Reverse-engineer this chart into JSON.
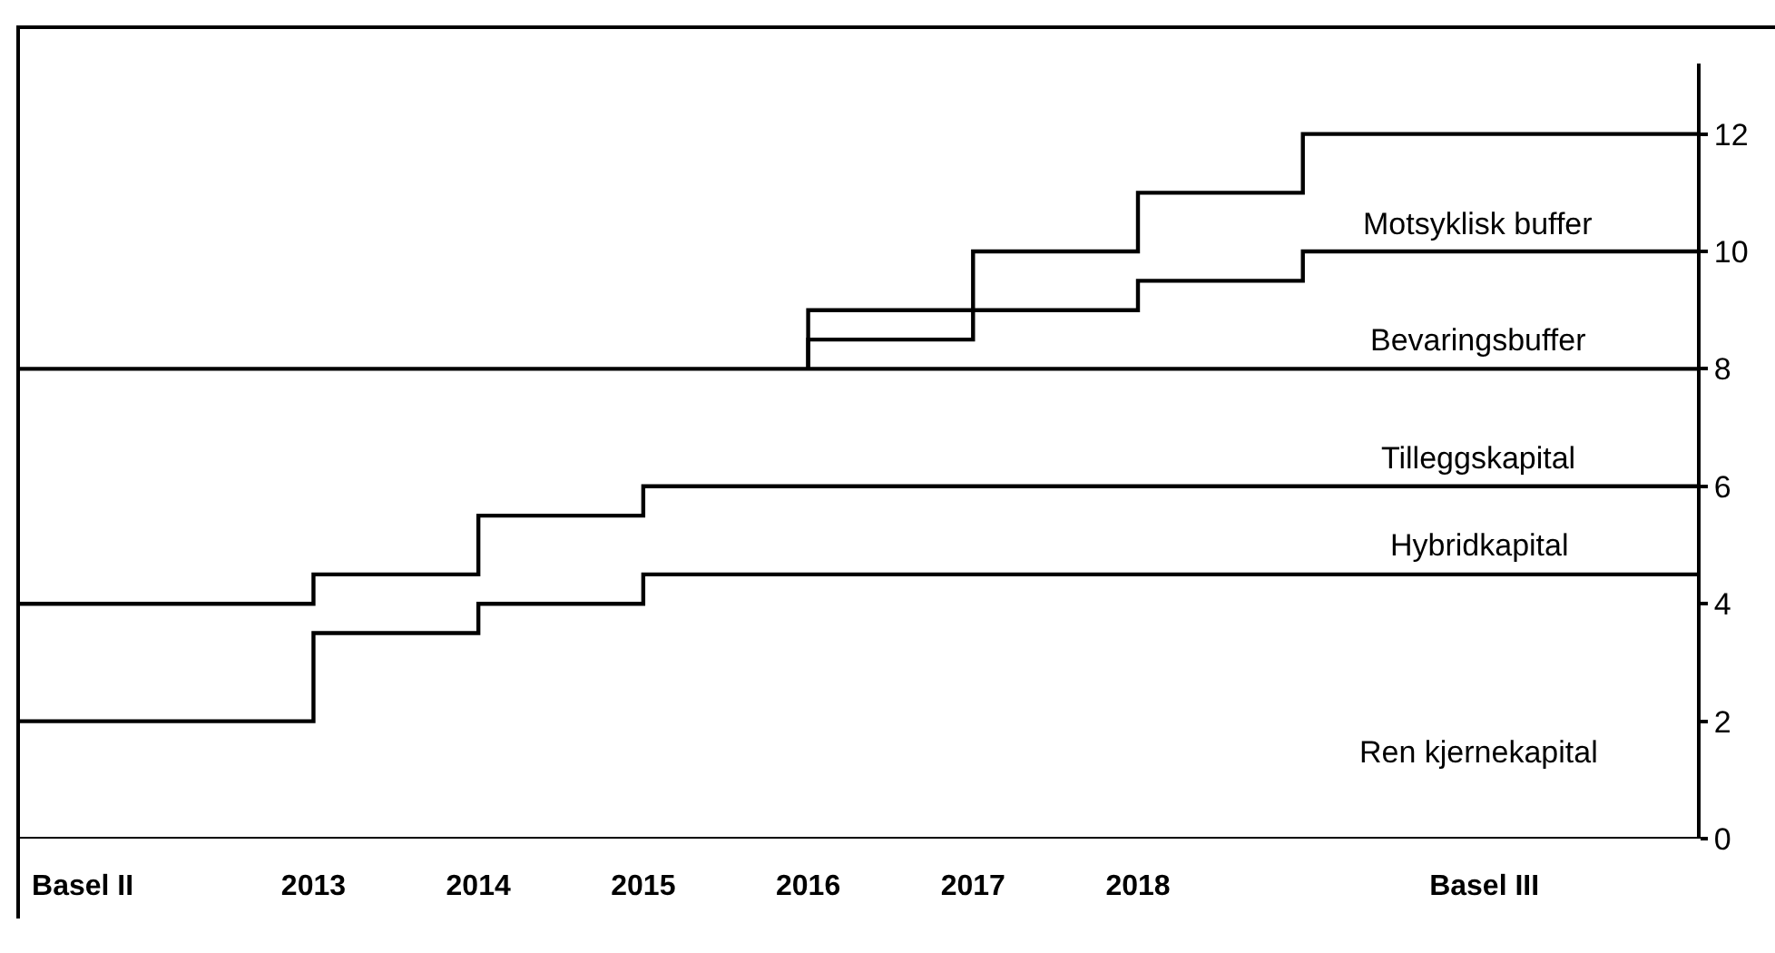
{
  "chart_data": {
    "type": "step",
    "xlim": [
      2011.22,
      2021.39
    ],
    "xticks": [
      {
        "value": 2011.6,
        "label": "Basel II"
      },
      2013,
      2014,
      2015,
      2016,
      2017,
      2018,
      {
        "value": 2020.1,
        "label": "Basel III"
      }
    ],
    "ylim": [
      0,
      13.2
    ],
    "yticks": [
      0,
      2,
      4,
      6,
      8,
      10,
      12
    ],
    "series": [
      {
        "color": "#000000",
        "x": [
          2011.22,
          2013,
          2014,
          2015,
          2021.39
        ],
        "values": [
          2,
          3.5,
          4,
          4.5,
          4.5
        ]
      },
      {
        "color": "#000000",
        "x": [
          2011.22,
          2013,
          2014,
          2015,
          2021.39
        ],
        "values": [
          4,
          4.5,
          5.5,
          6,
          6
        ]
      },
      {
        "color": "#000000",
        "x": [
          2011.22,
          2021.39
        ],
        "values": [
          8,
          8
        ]
      },
      {
        "color": "#000000",
        "x": [
          2016,
          2016,
          2017,
          2018,
          2019,
          2021.39
        ],
        "values": [
          8,
          8.5,
          9,
          9.5,
          10,
          10
        ]
      },
      {
        "color": "#000000",
        "x": [
          2016,
          2016,
          2017,
          2018,
          2019,
          2021.39
        ],
        "values": [
          8,
          9,
          10,
          11,
          12,
          12
        ]
      }
    ],
    "annotations": [
      "Motsyklisk buffer",
      "Bevaringsbuffer",
      "Tilleggskapital",
      "Hybridkapital",
      "Ren kjernekapital"
    ],
    "grid": false,
    "line_style": "solid",
    "marker": "none"
  }
}
